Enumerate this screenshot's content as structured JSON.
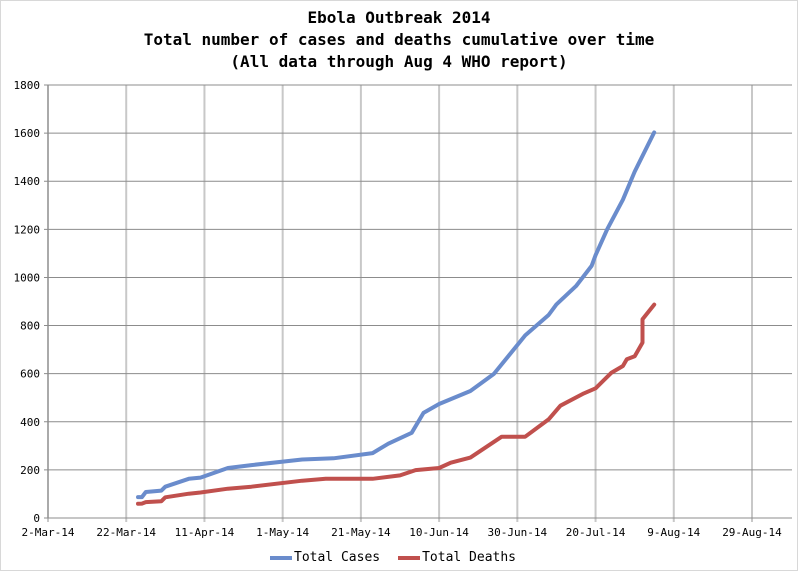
{
  "chart_data": {
    "type": "line",
    "title": "Ebola Outbreak 2014",
    "subtitle": "Total number of cases and deaths cumulative over time",
    "subtitle2": "(All data through Aug 4 WHO report)",
    "xlabel": "",
    "ylabel": "",
    "ylim": [
      0,
      1800
    ],
    "yticks": [
      "0",
      "200",
      "400",
      "600",
      "800",
      "1000",
      "1200",
      "1400",
      "1600",
      "1800"
    ],
    "xlim": [
      "2014-03-02",
      "2014-08-29"
    ],
    "xtick_dates": [
      "2014-03-02",
      "2014-03-22",
      "2014-04-11",
      "2014-05-01",
      "2014-05-21",
      "2014-06-10",
      "2014-06-30",
      "2014-07-20",
      "2014-08-09",
      "2014-08-29"
    ],
    "xticks": [
      "2-Mar-14",
      "22-Mar-14",
      "11-Apr-14",
      "1-May-14",
      "21-May-14",
      "10-Jun-14",
      "30-Jun-14",
      "20-Jul-14",
      "9-Aug-14",
      "29-Aug-14"
    ],
    "grid": true,
    "legend_position": "bottom",
    "series": [
      {
        "name": "Total Cases",
        "color": "#6a8ccc",
        "points": [
          [
            "2014-03-25",
            87
          ],
          [
            "2014-03-26",
            87
          ],
          [
            "2014-03-27",
            108
          ],
          [
            "2014-03-31",
            114
          ],
          [
            "2014-04-01",
            130
          ],
          [
            "2014-04-07",
            163
          ],
          [
            "2014-04-10",
            168
          ],
          [
            "2014-04-17",
            208
          ],
          [
            "2014-04-23",
            220
          ],
          [
            "2014-05-06",
            243
          ],
          [
            "2014-05-14",
            248
          ],
          [
            "2014-05-24",
            270
          ],
          [
            "2014-05-28",
            309
          ],
          [
            "2014-06-03",
            354
          ],
          [
            "2014-06-06",
            437
          ],
          [
            "2014-06-10",
            474
          ],
          [
            "2014-06-18",
            528
          ],
          [
            "2014-06-24",
            599
          ],
          [
            "2014-07-02",
            759
          ],
          [
            "2014-07-08",
            844
          ],
          [
            "2014-07-10",
            888
          ],
          [
            "2014-07-15",
            964
          ],
          [
            "2014-07-19",
            1048
          ],
          [
            "2014-07-20",
            1093
          ],
          [
            "2014-07-23",
            1201
          ],
          [
            "2014-07-27",
            1323
          ],
          [
            "2014-07-30",
            1440
          ],
          [
            "2014-08-04",
            1603
          ]
        ]
      },
      {
        "name": "Total Deaths",
        "color": "#c0504d",
        "points": [
          [
            "2014-03-25",
            59
          ],
          [
            "2014-03-26",
            60
          ],
          [
            "2014-03-27",
            66
          ],
          [
            "2014-03-31",
            70
          ],
          [
            "2014-04-01",
            86
          ],
          [
            "2014-04-07",
            101
          ],
          [
            "2014-04-10",
            106
          ],
          [
            "2014-04-17",
            122
          ],
          [
            "2014-04-23",
            130
          ],
          [
            "2014-05-06",
            155
          ],
          [
            "2014-05-12",
            163
          ],
          [
            "2014-05-24",
            163
          ],
          [
            "2014-05-31",
            177
          ],
          [
            "2014-06-04",
            199
          ],
          [
            "2014-06-10",
            208
          ],
          [
            "2014-06-13",
            230
          ],
          [
            "2014-06-18",
            251
          ],
          [
            "2014-06-26",
            338
          ],
          [
            "2014-07-02",
            338
          ],
          [
            "2014-07-08",
            410
          ],
          [
            "2014-07-11",
            467
          ],
          [
            "2014-07-17",
            518
          ],
          [
            "2014-07-20",
            539
          ],
          [
            "2014-07-24",
            603
          ],
          [
            "2014-07-27",
            632
          ],
          [
            "2014-07-28",
            660
          ],
          [
            "2014-07-30",
            672
          ],
          [
            "2014-08-01",
            729
          ],
          [
            "2014-08-01",
            826
          ],
          [
            "2014-08-04",
            887
          ]
        ]
      }
    ]
  }
}
